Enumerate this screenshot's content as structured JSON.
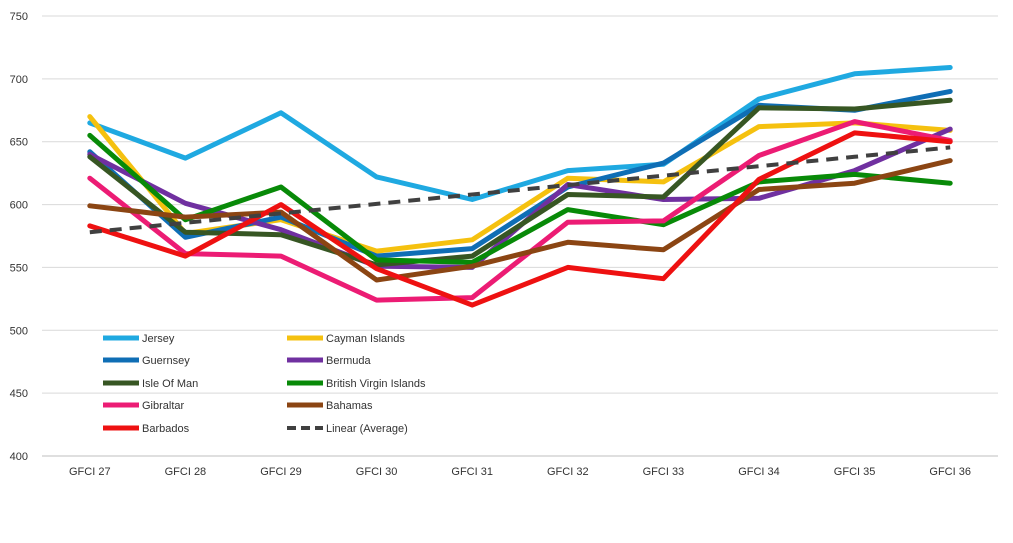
{
  "chart_data": {
    "type": "line",
    "title": "",
    "xlabel": "",
    "ylabel": "",
    "ylim": [
      400,
      750
    ],
    "yticks": [
      400,
      450,
      500,
      550,
      600,
      650,
      700,
      750
    ],
    "grid": "horizontal",
    "legend_position": "lower-left",
    "categories": [
      "GFCI 27",
      "GFCI 28",
      "GFCI 29",
      "GFCI 30",
      "GFCI 31",
      "GFCI 32",
      "GFCI 33",
      "GFCI 34",
      "GFCI 35",
      "GFCI 36"
    ],
    "series": [
      {
        "name": "Jersey",
        "color": "#1FA9E1",
        "dashed": false,
        "values": [
          665,
          637,
          673,
          622,
          604,
          627,
          632,
          684,
          704,
          709
        ]
      },
      {
        "name": "Cayman Islands",
        "color": "#F5C10F",
        "dashed": false,
        "values": [
          670,
          577,
          588,
          563,
          572,
          621,
          618,
          662,
          665,
          659
        ]
      },
      {
        "name": "Guernsey",
        "color": "#0F6EB5",
        "dashed": false,
        "values": [
          642,
          574,
          590,
          559,
          565,
          614,
          633,
          679,
          675,
          690
        ]
      },
      {
        "name": "Bermuda",
        "color": "#7030A0",
        "dashed": false,
        "values": [
          640,
          601,
          580,
          551,
          550,
          616,
          604,
          605,
          627,
          660
        ]
      },
      {
        "name": "Isle Of Man",
        "color": "#375623",
        "dashed": false,
        "values": [
          638,
          578,
          576,
          552,
          559,
          608,
          606,
          677,
          676,
          683
        ]
      },
      {
        "name": "British Virgin Islands",
        "color": "#088A08",
        "dashed": false,
        "values": [
          655,
          588,
          614,
          556,
          554,
          596,
          584,
          618,
          624,
          617
        ]
      },
      {
        "name": "Gibraltar",
        "color": "#EC1C74",
        "dashed": false,
        "values": [
          621,
          561,
          559,
          524,
          526,
          586,
          587,
          639,
          666,
          651
        ]
      },
      {
        "name": "Bahamas",
        "color": "#8B4513",
        "dashed": false,
        "values": [
          599,
          590,
          594,
          540,
          551,
          570,
          564,
          612,
          617,
          635
        ]
      },
      {
        "name": "Barbados",
        "color": "#EE1111",
        "dashed": false,
        "values": [
          583,
          559,
          600,
          549,
          520,
          550,
          541,
          620,
          657,
          650
        ]
      },
      {
        "name": "Linear (Average)",
        "color": "#404040",
        "dashed": true,
        "values": [
          578,
          585.5,
          593,
          600.5,
          608,
          615.5,
          623,
          630.5,
          638,
          645.5
        ]
      }
    ]
  }
}
